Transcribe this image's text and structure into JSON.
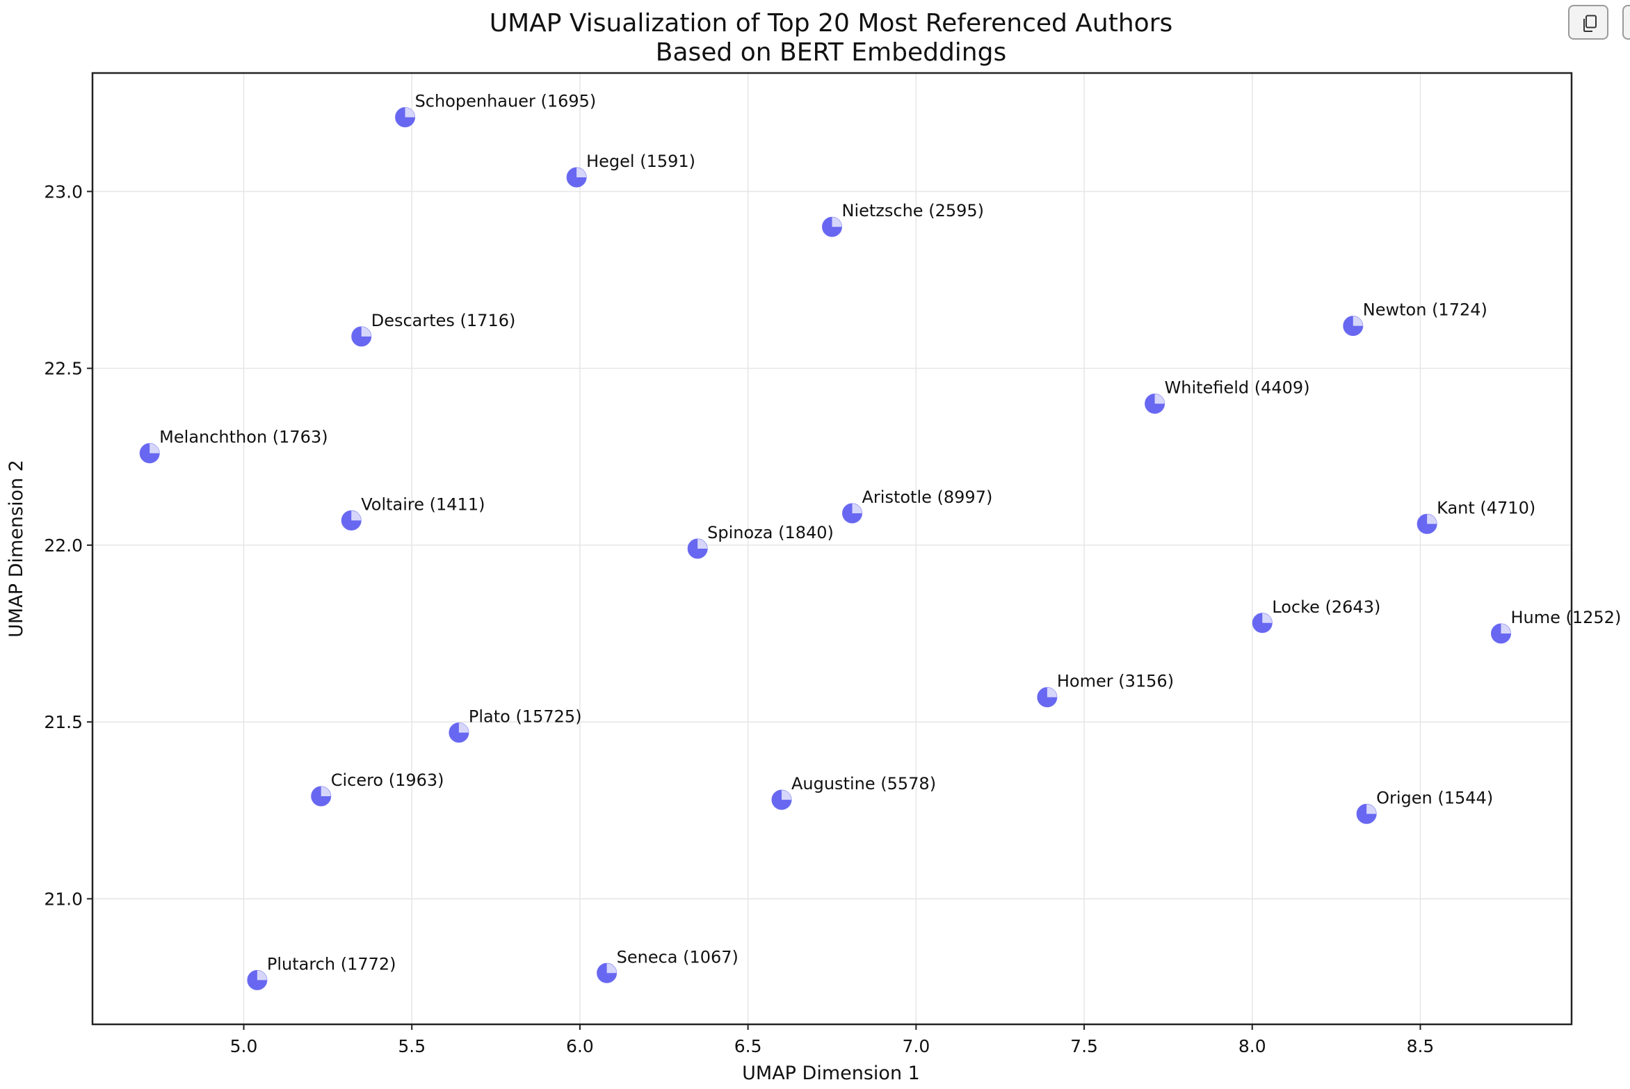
{
  "toolbar": {
    "copy_icon": "copy-icon"
  },
  "chart_data": {
    "type": "scatter",
    "title": "UMAP Visualization of Top 20 Most Referenced Authors",
    "subtitle": "Based on BERT Embeddings",
    "xlabel": "UMAP Dimension 1",
    "ylabel": "UMAP Dimension 2",
    "xlim": [
      4.55,
      8.95
    ],
    "ylim": [
      20.645,
      23.335
    ],
    "xticks": [
      "5.0",
      "5.5",
      "6.0",
      "6.5",
      "7.0",
      "7.5",
      "8.0",
      "8.5"
    ],
    "yticks": [
      "21.0",
      "21.5",
      "22.0",
      "22.5",
      "23.0"
    ],
    "grid": true,
    "marker_color": "#5a5af0",
    "points": [
      {
        "label": "Schopenhauer (1695)",
        "x": 5.48,
        "y": 23.21
      },
      {
        "label": "Hegel (1591)",
        "x": 5.99,
        "y": 23.04
      },
      {
        "label": "Nietzsche (2595)",
        "x": 6.75,
        "y": 22.9
      },
      {
        "label": "Descartes (1716)",
        "x": 5.35,
        "y": 22.59
      },
      {
        "label": "Newton (1724)",
        "x": 8.3,
        "y": 22.62
      },
      {
        "label": "Whitefield (4409)",
        "x": 7.71,
        "y": 22.4
      },
      {
        "label": "Melanchthon (1763)",
        "x": 4.72,
        "y": 22.26
      },
      {
        "label": "Voltaire (1411)",
        "x": 5.32,
        "y": 22.07
      },
      {
        "label": "Aristotle (8997)",
        "x": 6.81,
        "y": 22.09
      },
      {
        "label": "Spinoza (1840)",
        "x": 6.35,
        "y": 21.99
      },
      {
        "label": "Kant (4710)",
        "x": 8.52,
        "y": 22.06
      },
      {
        "label": "Locke (2643)",
        "x": 8.03,
        "y": 21.78
      },
      {
        "label": "Hume (1252)",
        "x": 8.74,
        "y": 21.75
      },
      {
        "label": "Homer (3156)",
        "x": 7.39,
        "y": 21.57
      },
      {
        "label": "Plato (15725)",
        "x": 5.64,
        "y": 21.47
      },
      {
        "label": "Cicero (1963)",
        "x": 5.23,
        "y": 21.29
      },
      {
        "label": "Augustine (5578)",
        "x": 6.6,
        "y": 21.28
      },
      {
        "label": "Origen (1544)",
        "x": 8.34,
        "y": 21.24
      },
      {
        "label": "Plutarch (1772)",
        "x": 5.04,
        "y": 20.77
      },
      {
        "label": "Seneca (1067)",
        "x": 6.08,
        "y": 20.79
      }
    ]
  }
}
